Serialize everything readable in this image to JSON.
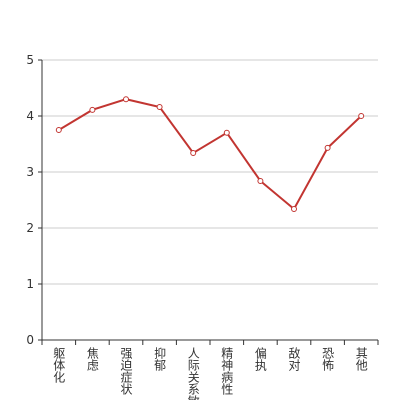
{
  "chart_data": {
    "type": "line",
    "categories": [
      "躯体化",
      "焦虑",
      "强迫症状",
      "抑郁",
      "人际关系敏感",
      "精神病性",
      "偏执",
      "敌对",
      "恐怖",
      "其他"
    ],
    "values": [
      3.75,
      4.11,
      4.3,
      4.16,
      3.34,
      3.7,
      2.84,
      2.34,
      3.43,
      4.0
    ],
    "color": "#c23531",
    "ylim": [
      0,
      5
    ],
    "yticks": [
      0,
      1,
      2,
      3,
      4,
      5
    ],
    "grid": true
  }
}
